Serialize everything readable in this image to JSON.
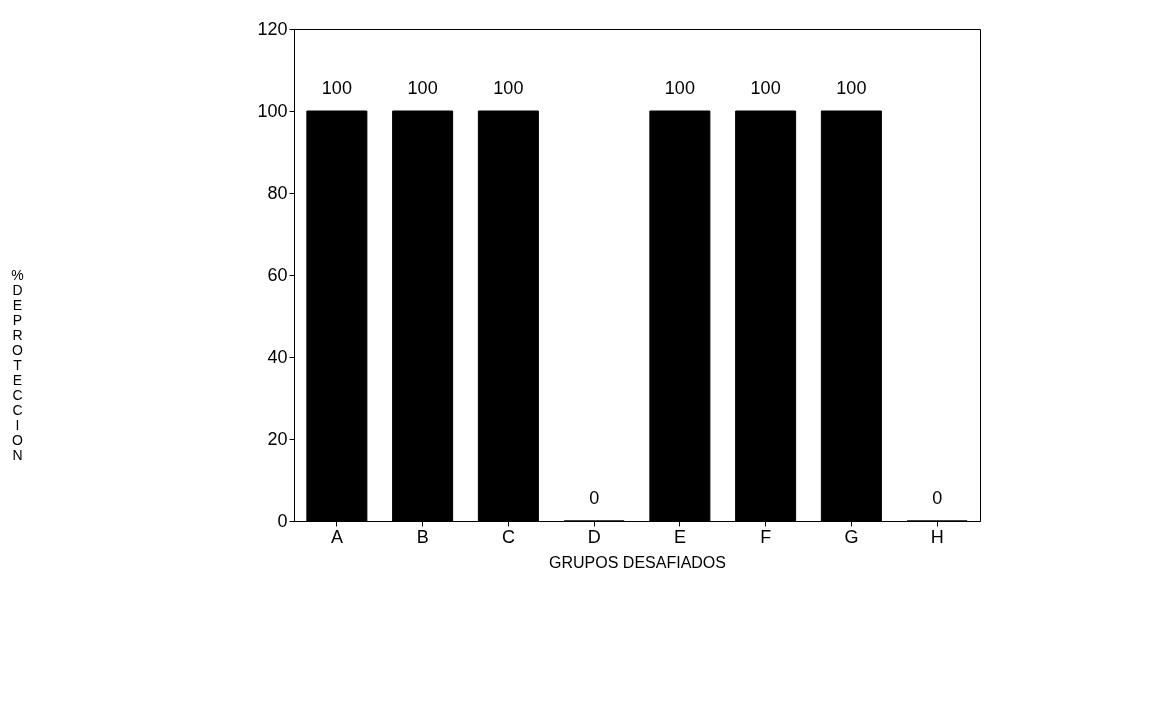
{
  "chart_data": {
    "type": "bar",
    "xlabel": "GRUPOS DESAFIADOS",
    "ylabel": "% DE PROTECCION",
    "categories": [
      "A",
      "B",
      "C",
      "D",
      "E",
      "F",
      "G",
      "H"
    ],
    "values": [
      100,
      100,
      100,
      0,
      100,
      100,
      100,
      0
    ],
    "color": "#000000",
    "ylim": [
      0,
      120
    ],
    "yticks": [
      0,
      20,
      40,
      60,
      80,
      100,
      120
    ],
    "data_labels": true,
    "grid": false
  }
}
